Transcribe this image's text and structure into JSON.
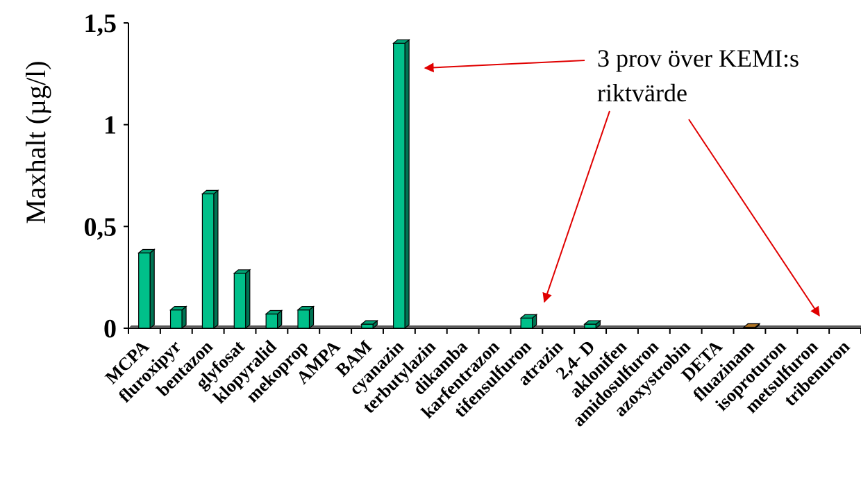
{
  "chart_data": {
    "type": "bar",
    "ylabel": "Maxhalt (µg/l)",
    "xlabel": "",
    "ylim": [
      0,
      1.5
    ],
    "yticks": [
      {
        "value": 0,
        "label": "0"
      },
      {
        "value": 0.5,
        "label": "0,5"
      },
      {
        "value": 1,
        "label": "1"
      },
      {
        "value": 1.5,
        "label": "1,5"
      }
    ],
    "categories": [
      "MCPA",
      "fluroxipyr",
      "bentazon",
      "glyfosat",
      "klopyralid",
      "mekoprop",
      "AMPA",
      "BAM",
      "cyanazin",
      "terbutylazin",
      "dikamba",
      "karfentrazon",
      "tifensulfuron",
      "atrazin",
      "2,4- D",
      "aklonifen",
      "amidosulfuron",
      "azoxystrobin",
      "DETA",
      "fluazinam",
      "isoproturon",
      "metsulfuron",
      "tribenuron"
    ],
    "values": [
      0.37,
      0.09,
      0.66,
      0.27,
      0.07,
      0.09,
      0,
      0.02,
      1.4,
      0,
      0,
      0,
      0.05,
      0,
      0.02,
      0,
      0,
      0,
      0,
      0.005,
      0,
      0,
      0
    ],
    "bar_colors": [
      "#00c08a",
      "#00c08a",
      "#00c08a",
      "#00c08a",
      "#00c08a",
      "#00c08a",
      "#00c08a",
      "#00c08a",
      "#00c08a",
      "#00c08a",
      "#00c08a",
      "#00c08a",
      "#00c08a",
      "#00c08a",
      "#00c08a",
      "#00c08a",
      "#00c08a",
      "#00c08a",
      "#00c08a",
      "#d08a2a",
      "#00c08a",
      "#00c08a",
      "#00c08a"
    ],
    "bar_color": "#00c08a",
    "annotation": {
      "lines": [
        "3 prov över KEMI:s",
        "riktvärde"
      ],
      "arrow_color": "#e00000",
      "targets": [
        "cyanazin",
        "tifensulfuron",
        "metsulfuron"
      ]
    },
    "grid": false
  }
}
